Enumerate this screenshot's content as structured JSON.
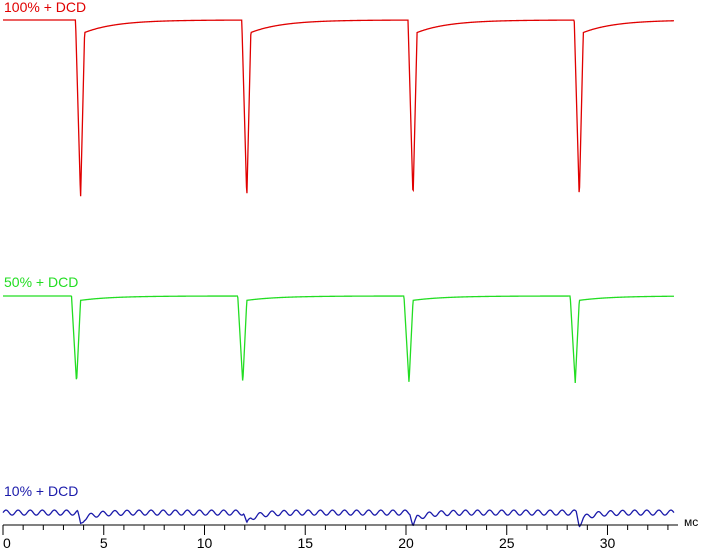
{
  "chart_data": {
    "type": "line",
    "title": "",
    "xlabel": "мс",
    "ylabel": "",
    "xlim": [
      0,
      33.5
    ],
    "grid": false,
    "legend": "inline labels above each trace",
    "x_ticks": [
      0,
      5,
      10,
      15,
      20,
      25,
      30
    ],
    "period_ms": 8.33,
    "series": [
      {
        "name": "100% + DCD",
        "color": "#e00000",
        "baseline": 1.0,
        "dip_level": 0.0,
        "dip_times_ms": [
          3.85,
          12.1,
          20.35,
          28.6
        ],
        "recovery_start": 0.93
      },
      {
        "name": "50% + DCD",
        "color": "#22dd22",
        "baseline": 1.0,
        "dip_level": 0.0,
        "dip_times_ms": [
          3.65,
          11.9,
          20.15,
          28.4
        ],
        "recovery_start": 0.95
      },
      {
        "name": "10% + DCD",
        "color": "#1a1aaa",
        "baseline": 1.0,
        "dip_level": 0.0,
        "dip_times_ms": [
          3.85,
          12.1,
          20.35,
          28.6
        ],
        "ripple": true
      }
    ]
  }
}
